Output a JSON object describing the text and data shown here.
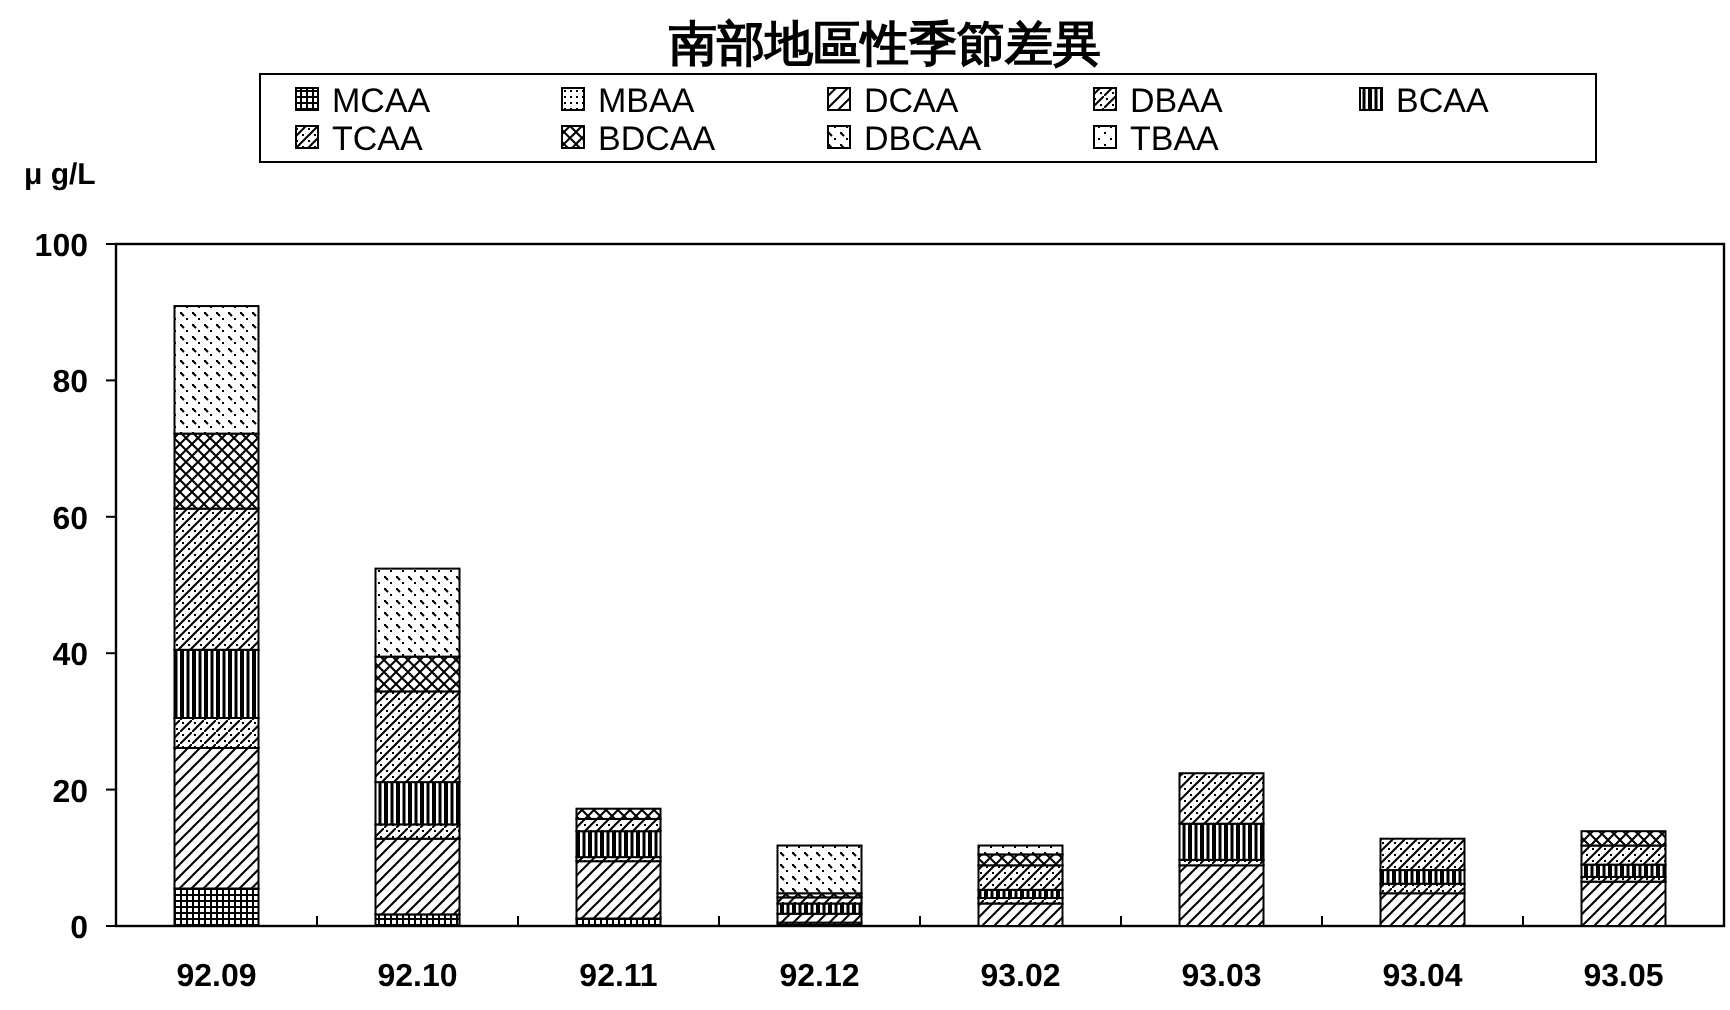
{
  "chart_data": {
    "type": "bar",
    "stacked": true,
    "title": "南部地區性季節差異",
    "ylabel": "μ g/L",
    "categories": [
      "92.09",
      "92.10",
      "92.11",
      "92.12",
      "93.02",
      "93.03",
      "93.04",
      "93.05"
    ],
    "ylim": [
      0,
      100
    ],
    "yticks": [
      0,
      20,
      40,
      60,
      80,
      100
    ],
    "legend": "top",
    "grid": false,
    "series": [
      {
        "name": "MCAA",
        "color": "#000000",
        "values": [
          5.5,
          1.7,
          1.1,
          0.5,
          null,
          null,
          null,
          null
        ]
      },
      {
        "name": "MBAA",
        "color": "#000000",
        "values": [
          null,
          null,
          null,
          null,
          null,
          null,
          null,
          null
        ]
      },
      {
        "name": "DCAA",
        "color": "#000000",
        "values": [
          20.6,
          11.1,
          8.4,
          1.3,
          3.3,
          8.9,
          4.8,
          6.5
        ]
      },
      {
        "name": "DBAA",
        "color": "#000000",
        "values": [
          4.4,
          2.1,
          0.6,
          null,
          0.8,
          0.8,
          1.4,
          0.7
        ]
      },
      {
        "name": "BCAA",
        "color": "#000000",
        "values": [
          10,
          6.2,
          3.8,
          1.5,
          1.2,
          5.3,
          2.0,
          1.8
        ]
      },
      {
        "name": "TCAA",
        "color": "#000000",
        "values": [
          20.7,
          13.3,
          1.8,
          0.9,
          3.6,
          7.4,
          4.6,
          2.8
        ]
      },
      {
        "name": "BDCAA",
        "color": "#000000",
        "values": [
          11,
          5.1,
          1.5,
          0.6,
          1.6,
          null,
          null,
          2.1
        ]
      },
      {
        "name": "DBCAA",
        "color": "#000000",
        "values": [
          18.7,
          12.9,
          null,
          7.0,
          1.3,
          null,
          null,
          null
        ]
      },
      {
        "name": "TBAA",
        "color": "#000000",
        "values": [
          null,
          null,
          null,
          null,
          null,
          null,
          null,
          null
        ]
      }
    ]
  }
}
